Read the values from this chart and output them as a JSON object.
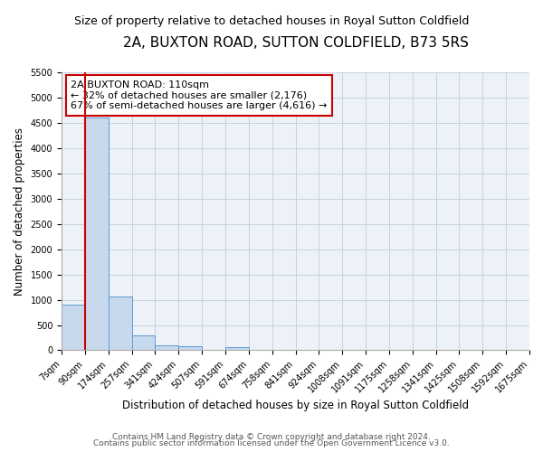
{
  "title": "2A, BUXTON ROAD, SUTTON COLDFIELD, B73 5RS",
  "subtitle": "Size of property relative to detached houses in Royal Sutton Coldfield",
  "xlabel": "Distribution of detached houses by size in Royal Sutton Coldfield",
  "ylabel": "Number of detached properties",
  "bar_values": [
    900,
    4600,
    1060,
    300,
    100,
    80,
    0,
    60,
    0,
    0,
    0,
    0,
    0,
    0,
    0,
    0,
    0,
    0,
    0,
    0
  ],
  "bin_labels": [
    "7sqm",
    "90sqm",
    "174sqm",
    "257sqm",
    "341sqm",
    "424sqm",
    "507sqm",
    "591sqm",
    "674sqm",
    "758sqm",
    "841sqm",
    "924sqm",
    "1008sqm",
    "1091sqm",
    "1175sqm",
    "1258sqm",
    "1341sqm",
    "1425sqm",
    "1508sqm",
    "1592sqm",
    "1675sqm"
  ],
  "bar_color": "#c8d9ee",
  "bar_edge_color": "#5b9bd5",
  "red_line_color": "#cc0000",
  "red_line_x": 1,
  "annotation_box_text_line1": "2A BUXTON ROAD: 110sqm",
  "annotation_box_text_line2": "← 32% of detached houses are smaller (2,176)",
  "annotation_box_text_line3": "67% of semi-detached houses are larger (4,616) →",
  "annotation_box_facecolor": "#ffffff",
  "annotation_box_edgecolor": "#cc0000",
  "ylim": [
    0,
    5500
  ],
  "yticks": [
    0,
    500,
    1000,
    1500,
    2000,
    2500,
    3000,
    3500,
    4000,
    4500,
    5000,
    5500
  ],
  "bg_color": "#edf2f9",
  "grid_color": "#c8d0df",
  "footer_line1": "Contains HM Land Registry data © Crown copyright and database right 2024.",
  "footer_line2": "Contains public sector information licensed under the Open Government Licence v3.0.",
  "title_fontsize": 11,
  "subtitle_fontsize": 9,
  "axis_label_fontsize": 8.5,
  "tick_fontsize": 7,
  "annotation_fontsize": 8,
  "footer_fontsize": 6.5
}
